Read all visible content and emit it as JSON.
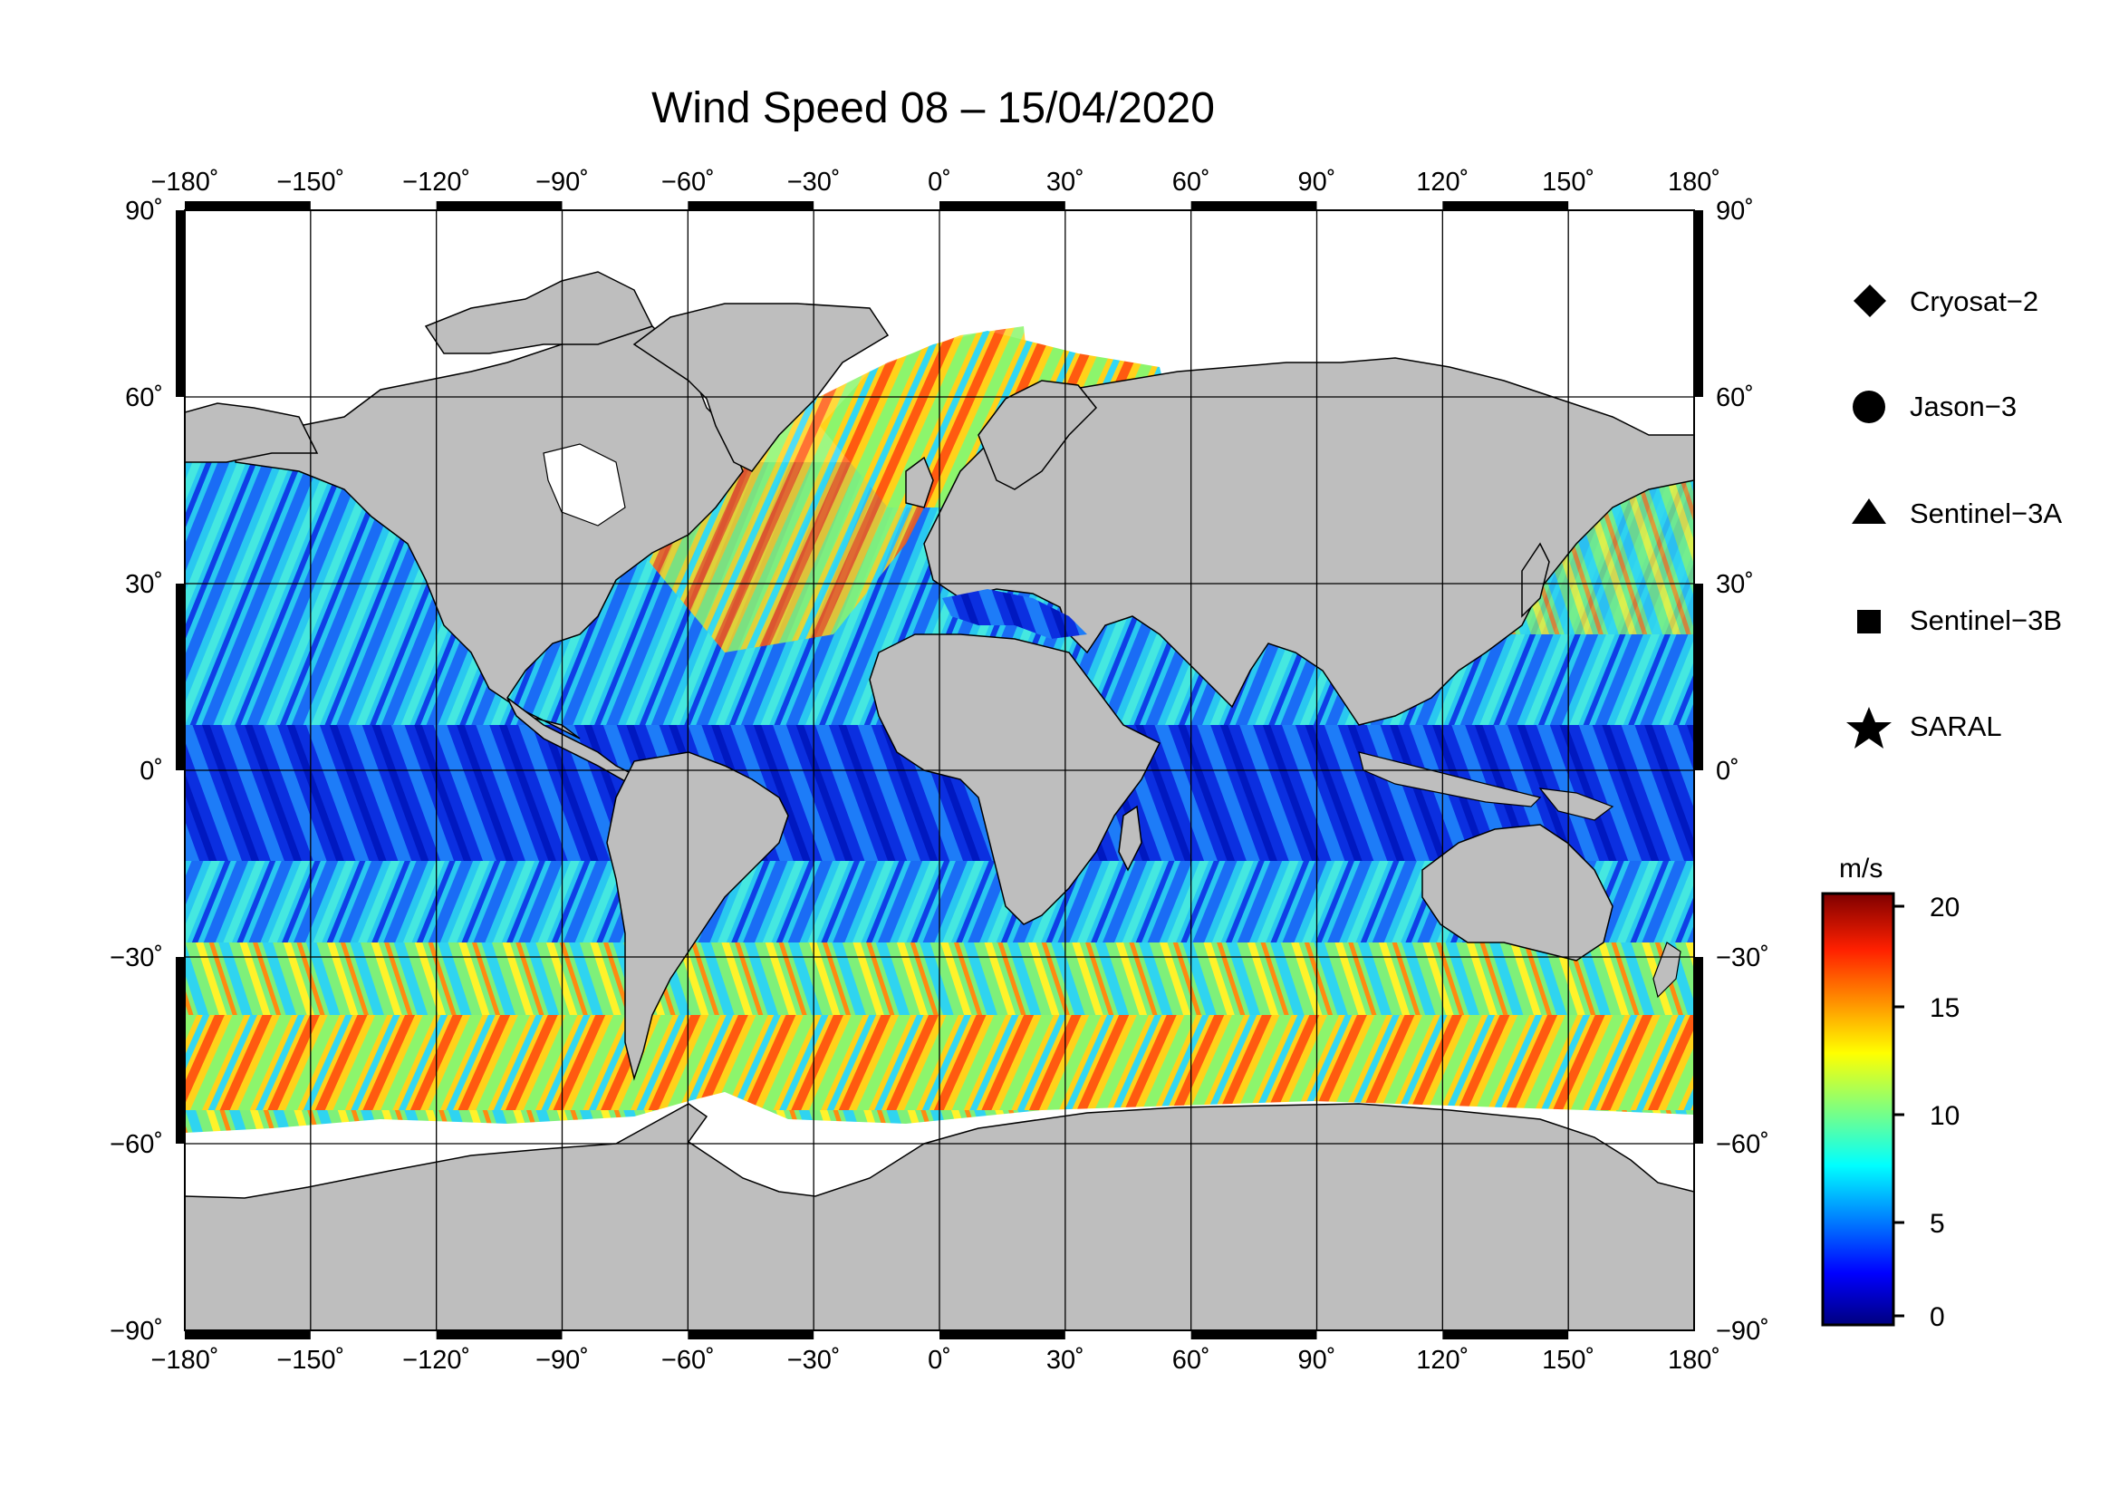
{
  "title": "Wind Speed 08 – 15/04/2020",
  "map": {
    "lon_ticks": [
      "−180˚",
      "−150˚",
      "−120˚",
      "−90˚",
      "−60˚",
      "−30˚",
      "0˚",
      "30˚",
      "60˚",
      "90˚",
      "120˚",
      "150˚",
      "180˚"
    ],
    "lat_ticks": [
      "90˚",
      "60˚",
      "30˚",
      "0˚",
      "−30˚",
      "−60˚",
      "−90˚"
    ],
    "lon_range": [
      -180,
      180
    ],
    "lat_range": [
      -90,
      90
    ],
    "grid_step_deg": 30,
    "land_color": "#bebebe",
    "ice_color": "#ffffff"
  },
  "legend": {
    "items": [
      {
        "icon": "diamond-icon",
        "label": "Cryosat−2"
      },
      {
        "icon": "circle-icon",
        "label": "Jason−3"
      },
      {
        "icon": "triangle-icon",
        "label": "Sentinel−3A"
      },
      {
        "icon": "square-icon",
        "label": "Sentinel−3B"
      },
      {
        "icon": "star-icon",
        "label": "SARAL"
      }
    ]
  },
  "colorbar": {
    "unit": "m/s",
    "ticks": [
      "20",
      "15",
      "10",
      "5",
      "0"
    ],
    "range": [
      0,
      20
    ],
    "colors": [
      "#00007f",
      "#0000ff",
      "#007fff",
      "#00ffff",
      "#7fff7f",
      "#ffff00",
      "#ff7f00",
      "#ff0000",
      "#7f0000"
    ]
  }
}
